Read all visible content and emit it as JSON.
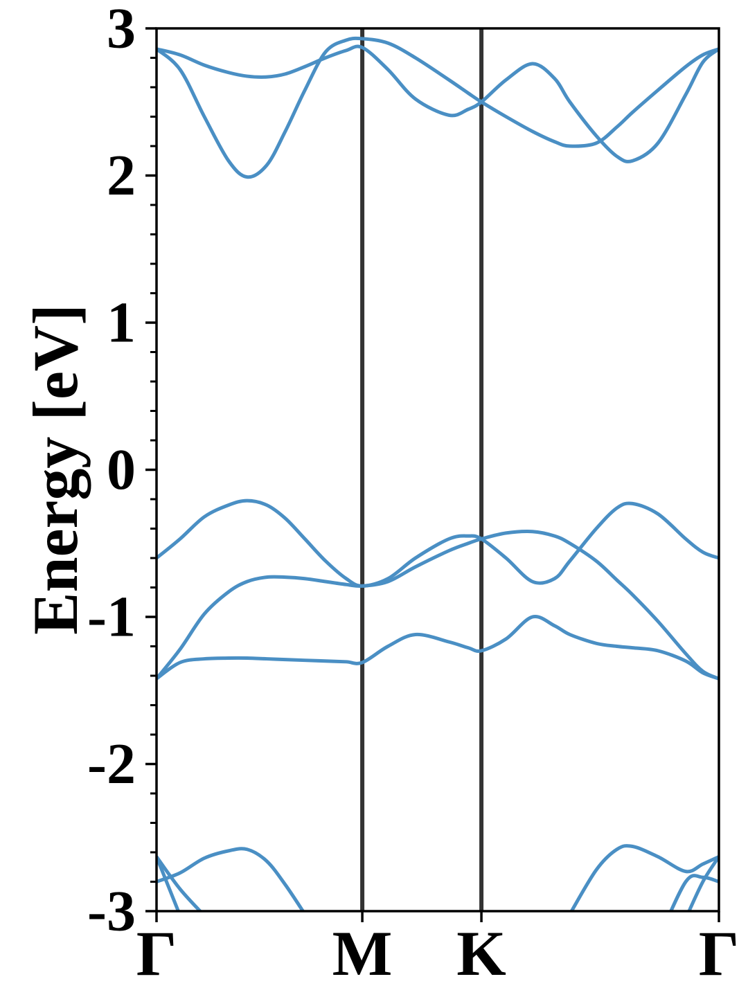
{
  "chart_data": {
    "type": "line",
    "ylabel": "Energy [eV]",
    "xlim": [
      0,
      1.577
    ],
    "ylim": [
      -3,
      3
    ],
    "xticks": [
      {
        "value": 0,
        "label": "Γ"
      },
      {
        "value": 0.577,
        "label": "M"
      },
      {
        "value": 0.911,
        "label": "K"
      },
      {
        "value": 1.577,
        "label": "Γ"
      }
    ],
    "yticks": [
      -3,
      -2,
      -1,
      0,
      1,
      2,
      3
    ],
    "yticks_minor": [
      -2.8,
      -2.6,
      -2.4,
      -2.2,
      -1.8,
      -1.6,
      -1.4,
      -1.2,
      -0.8,
      -0.6,
      -0.4,
      -0.2,
      0.2,
      0.4,
      0.6,
      0.8,
      1.2,
      1.4,
      1.6,
      1.8,
      2.2,
      2.4,
      2.6,
      2.8
    ],
    "kpoint_lines": true,
    "kpoint_line_color": "#333333",
    "x": [
      0,
      0.066,
      0.134,
      0.202,
      0.254,
      0.309,
      0.361,
      0.416,
      0.474,
      0.532,
      0.577,
      0.649,
      0.726,
      0.82,
      0.874,
      0.911,
      0.98,
      1.054,
      1.116,
      1.159,
      1.233,
      1.291,
      1.335,
      1.406,
      1.484,
      1.532,
      1.577
    ],
    "series": [
      {
        "color": "#4a8fc4",
        "values": [
          2.86,
          2.72,
          2.4,
          2.1,
          1.99,
          2.07,
          2.3,
          2.58,
          2.84,
          2.92,
          2.93,
          2.9,
          2.8,
          2.65,
          2.56,
          2.5,
          2.4,
          2.3,
          2.23,
          2.2,
          2.22,
          2.33,
          2.43,
          2.58,
          2.74,
          2.82,
          2.86
        ]
      },
      {
        "color": "#4a8fc4",
        "values": [
          2.86,
          2.82,
          2.75,
          2.7,
          2.675,
          2.67,
          2.69,
          2.74,
          2.8,
          2.85,
          2.87,
          2.72,
          2.52,
          2.41,
          2.45,
          2.5,
          2.65,
          2.76,
          2.66,
          2.5,
          2.27,
          2.13,
          2.1,
          2.22,
          2.55,
          2.77,
          2.86
        ]
      },
      {
        "color": "#4a8fc4",
        "values": [
          -0.6,
          -0.47,
          -0.32,
          -0.24,
          -0.21,
          -0.24,
          -0.33,
          -0.47,
          -0.62,
          -0.74,
          -0.79,
          -0.74,
          -0.6,
          -0.47,
          -0.45,
          -0.47,
          -0.6,
          -0.76,
          -0.74,
          -0.62,
          -0.4,
          -0.26,
          -0.23,
          -0.3,
          -0.47,
          -0.56,
          -0.6
        ]
      },
      {
        "color": "#4a8fc4",
        "values": [
          -1.42,
          -1.22,
          -0.98,
          -0.83,
          -0.76,
          -0.73,
          -0.73,
          -0.74,
          -0.76,
          -0.78,
          -0.79,
          -0.76,
          -0.66,
          -0.55,
          -0.5,
          -0.47,
          -0.43,
          -0.42,
          -0.45,
          -0.5,
          -0.62,
          -0.75,
          -0.85,
          -1.03,
          -1.25,
          -1.37,
          -1.42
        ]
      },
      {
        "color": "#4a8fc4",
        "values": [
          -1.42,
          -1.31,
          -1.285,
          -1.28,
          -1.28,
          -1.285,
          -1.29,
          -1.295,
          -1.3,
          -1.305,
          -1.31,
          -1.2,
          -1.12,
          -1.17,
          -1.21,
          -1.23,
          -1.15,
          -1.0,
          -1.06,
          -1.12,
          -1.18,
          -1.2,
          -1.21,
          -1.23,
          -1.3,
          -1.38,
          -1.42
        ]
      },
      {
        "color": "#4a8fc4",
        "values": [
          -2.8,
          -2.74,
          -2.64,
          -2.59,
          -2.58,
          -2.66,
          -2.82,
          -3.02,
          null,
          null,
          null,
          null,
          null,
          null,
          null,
          null,
          null,
          null,
          null,
          -3.02,
          -2.72,
          -2.58,
          -2.56,
          -2.63,
          -2.73,
          -2.68,
          -2.63
        ]
      },
      {
        "color": "#4a8fc4",
        "values": [
          -2.63,
          -2.85,
          -3.03,
          null,
          null,
          null,
          null,
          null,
          null,
          null,
          null,
          null,
          null,
          null,
          null,
          null,
          null,
          null,
          null,
          null,
          null,
          null,
          null,
          null,
          -3.05,
          -2.8,
          -2.63
        ]
      },
      {
        "color": "#4a8fc4",
        "values": [
          -2.63,
          -3.03,
          null,
          null,
          null,
          null,
          null,
          null,
          null,
          null,
          null,
          null,
          null,
          null,
          null,
          null,
          null,
          null,
          null,
          null,
          null,
          null,
          null,
          -3.2,
          -2.8,
          -2.77,
          -2.8
        ]
      }
    ]
  }
}
